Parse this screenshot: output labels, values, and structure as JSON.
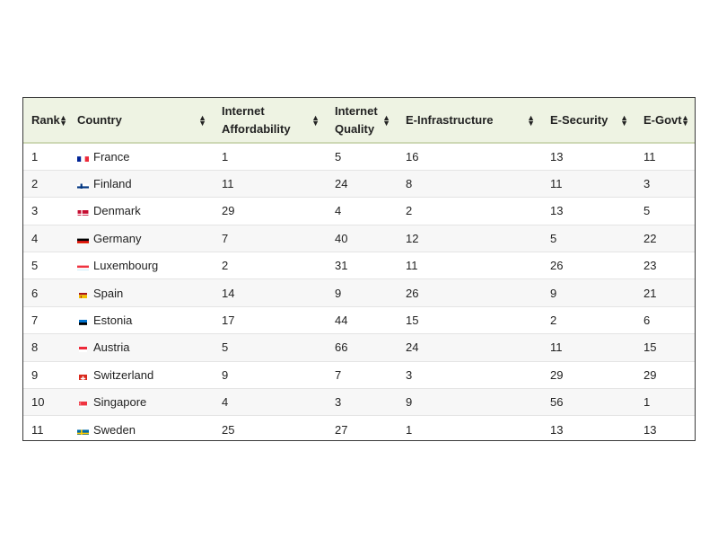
{
  "table": {
    "columns": [
      {
        "label": "Rank"
      },
      {
        "label": "Country"
      },
      {
        "label": "Internet Affordability"
      },
      {
        "label": "Internet Quality"
      },
      {
        "label": "E-Infrastructure"
      },
      {
        "label": "E-Security"
      },
      {
        "label": "E-Govt"
      }
    ],
    "rows": [
      {
        "rank": "1",
        "country": "France",
        "flag": "flag-france-icon",
        "afford": "1",
        "quality": "5",
        "infra": "16",
        "security": "13",
        "govt": "11"
      },
      {
        "rank": "2",
        "country": "Finland",
        "flag": "flag-finland-icon",
        "afford": "11",
        "quality": "24",
        "infra": "8",
        "security": "11",
        "govt": "3"
      },
      {
        "rank": "3",
        "country": "Denmark",
        "flag": "flag-denmark-icon",
        "afford": "29",
        "quality": "4",
        "infra": "2",
        "security": "13",
        "govt": "5"
      },
      {
        "rank": "4",
        "country": "Germany",
        "flag": "flag-germany-icon",
        "afford": "7",
        "quality": "40",
        "infra": "12",
        "security": "5",
        "govt": "22"
      },
      {
        "rank": "5",
        "country": "Luxembourg",
        "flag": "flag-luxembourg-icon",
        "afford": "2",
        "quality": "31",
        "infra": "11",
        "security": "26",
        "govt": "23"
      },
      {
        "rank": "6",
        "country": "Spain",
        "flag": "flag-spain-icon",
        "afford": "14",
        "quality": "9",
        "infra": "26",
        "security": "9",
        "govt": "21"
      },
      {
        "rank": "7",
        "country": "Estonia",
        "flag": "flag-estonia-icon",
        "afford": "17",
        "quality": "44",
        "infra": "15",
        "security": "2",
        "govt": "6"
      },
      {
        "rank": "8",
        "country": "Austria",
        "flag": "flag-austria-icon",
        "afford": "5",
        "quality": "66",
        "infra": "24",
        "security": "11",
        "govt": "15"
      },
      {
        "rank": "9",
        "country": "Switzerland",
        "flag": "flag-switzerland-icon",
        "afford": "9",
        "quality": "7",
        "infra": "3",
        "security": "29",
        "govt": "29"
      },
      {
        "rank": "10",
        "country": "Singapore",
        "flag": "flag-singapore-icon",
        "afford": "4",
        "quality": "3",
        "infra": "9",
        "security": "56",
        "govt": "1"
      },
      {
        "rank": "11",
        "country": "Sweden",
        "flag": "flag-sweden-icon",
        "afford": "25",
        "quality": "27",
        "infra": "1",
        "security": "13",
        "govt": "13"
      }
    ]
  },
  "colors": {
    "header_bg": "#eef3e3",
    "header_border": "#cdd8b4",
    "row_alt": "#f7f7f7",
    "outer_border": "#3a3a3a"
  }
}
